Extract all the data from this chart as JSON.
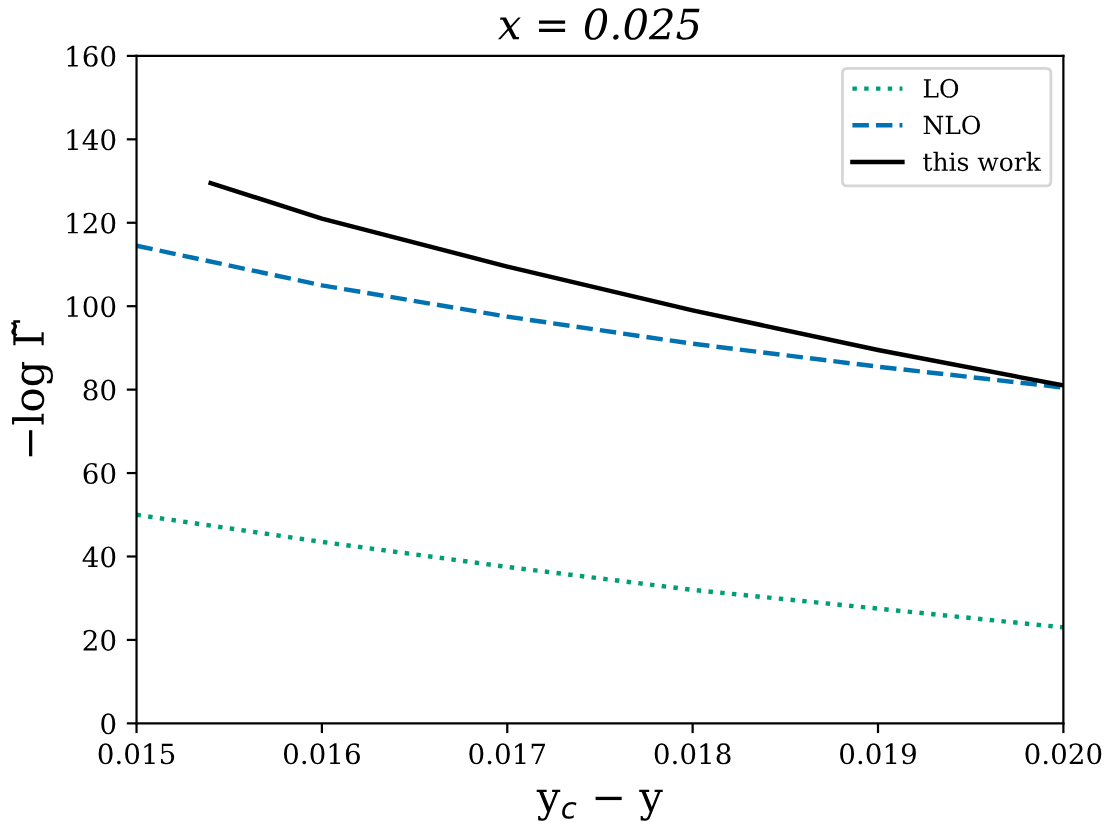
{
  "chart_data": {
    "type": "line",
    "title": "x = 0.025",
    "xlabel": "y$_{c}$ − y",
    "ylabel": "−log Γ̃",
    "xlim": [
      0.015,
      0.02
    ],
    "xticks": [
      {
        "value": 0.015,
        "label": "0.015"
      },
      {
        "value": 0.016,
        "label": "0.016"
      },
      {
        "value": 0.017,
        "label": "0.017"
      },
      {
        "value": 0.018,
        "label": "0.018"
      },
      {
        "value": 0.019,
        "label": "0.019"
      },
      {
        "value": 0.02,
        "label": "0.020"
      }
    ],
    "ylim": [
      0,
      160
    ],
    "yticks": [
      0,
      20,
      40,
      60,
      80,
      100,
      120,
      140,
      160
    ],
    "grid": false,
    "legend": "top right",
    "series": [
      {
        "name": "LO",
        "color": "#009e73",
        "line_style": "dotted",
        "x": [
          0.015,
          0.016,
          0.017,
          0.018,
          0.019,
          0.02
        ],
        "values": [
          50,
          43.5,
          37.5,
          32,
          27.5,
          23
        ]
      },
      {
        "name": "NLO",
        "color": "#0072b2",
        "line_style": "dashed",
        "x": [
          0.015,
          0.016,
          0.017,
          0.018,
          0.019,
          0.02
        ],
        "values": [
          114.5,
          105,
          97.5,
          91,
          85.5,
          80.5
        ]
      },
      {
        "name": "this work",
        "color": "#000000",
        "line_style": "solid",
        "x": [
          0.0154,
          0.016,
          0.017,
          0.018,
          0.019,
          0.02
        ],
        "values": [
          129.5,
          121,
          109.5,
          99,
          89.5,
          81
        ]
      }
    ]
  }
}
